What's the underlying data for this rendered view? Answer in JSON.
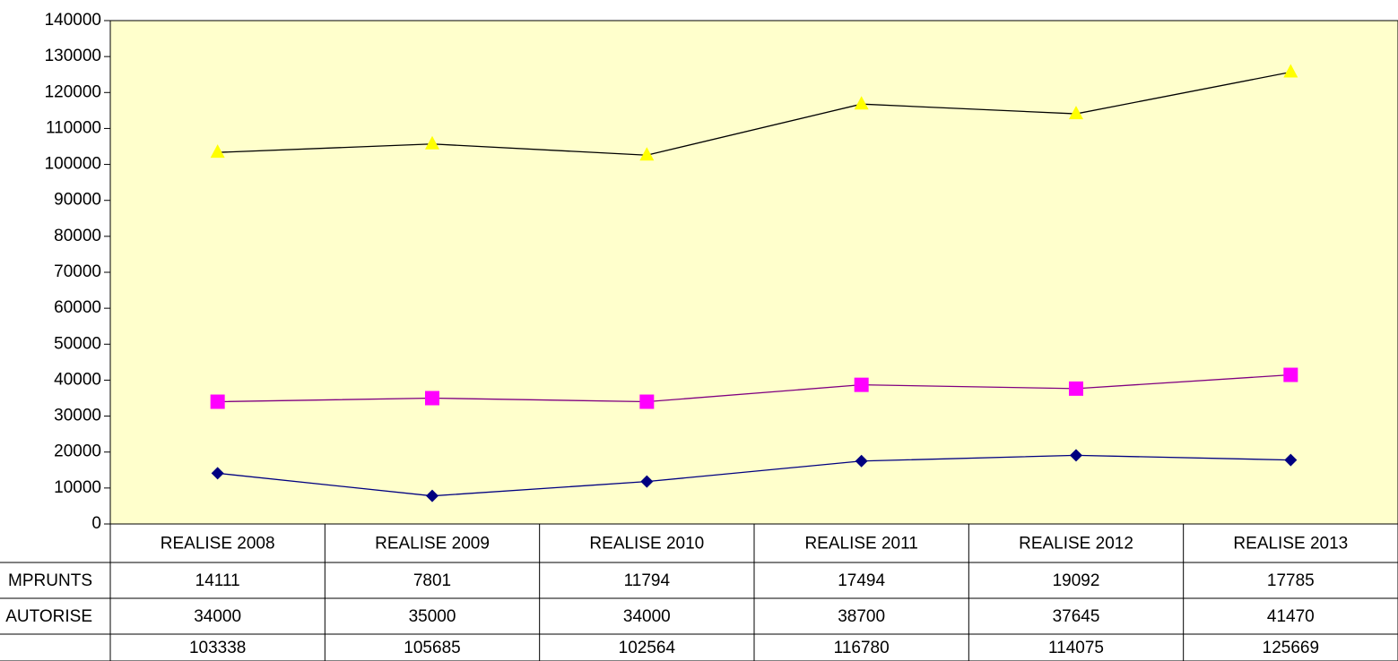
{
  "chart_data": {
    "type": "line",
    "categories": [
      "REALISE 2008",
      "REALISE 2009",
      "REALISE 2010",
      "REALISE 2011",
      "REALISE 2012",
      "REALISE 2013"
    ],
    "series": [
      {
        "name": "MPRUNTS",
        "color": "#000080",
        "line_color": "#000080",
        "marker": "diamond",
        "values": [
          14111,
          7801,
          11794,
          17494,
          19092,
          17785
        ]
      },
      {
        "name": "AUTORISE",
        "color": "#ff00ff",
        "line_color": "#800080",
        "marker": "square",
        "values": [
          34000,
          35000,
          34000,
          38700,
          37645,
          41470
        ]
      },
      {
        "name": null,
        "color": "#ffff00",
        "line_color": "#000000",
        "marker": "triangle",
        "values": [
          103338,
          105685,
          102564,
          116780,
          114075,
          125669
        ]
      }
    ],
    "ylim": [
      0,
      140000
    ],
    "yticks": [
      0,
      10000,
      20000,
      30000,
      40000,
      50000,
      60000,
      70000,
      80000,
      90000,
      100000,
      110000,
      120000,
      130000,
      140000
    ],
    "plot_background": "#ffffcc",
    "data_table": true
  }
}
